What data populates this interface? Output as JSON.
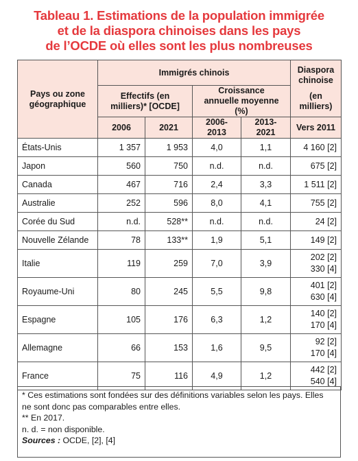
{
  "title": {
    "line1": "Tableau 1. Estimations de la population immigrée",
    "line2": "et de la diaspora chinoises dans les pays",
    "line3": "de l’OCDE où elles sont les plus nombreuses"
  },
  "header": {
    "country_col": "Pays ou zone géographique",
    "immigres_group": "Immigrés chinois",
    "effectifs": "Effectifs (en milliers)* [OCDE]",
    "croissance": "Croissance annuelle moyenne (%)",
    "diaspora_line1": "Diaspora",
    "diaspora_line2": "chinoise",
    "diaspora_unit": "(en milliers)",
    "y2006": "2006",
    "y2021": "2021",
    "p1": "2006-2013",
    "p2": "2013-2021",
    "vers": "Vers 2011"
  },
  "rows": [
    {
      "country": "États-Unis",
      "v2006": "1 357",
      "v2021": "1 953",
      "g1": "4,0",
      "g2": "1,1",
      "d1": "4 160 [2]",
      "d2": ""
    },
    {
      "country": "Japon",
      "v2006": "560",
      "v2021": "750",
      "g1": "n.d.",
      "g2": "n.d.",
      "d1": "675 [2]",
      "d2": ""
    },
    {
      "country": "Canada",
      "v2006": "467",
      "v2021": "716",
      "g1": "2,4",
      "g2": "3,3",
      "d1": "1 511 [2]",
      "d2": ""
    },
    {
      "country": "Australie",
      "v2006": "252",
      "v2021": "596",
      "g1": "8,0",
      "g2": "4,1",
      "d1": "755 [2]",
      "d2": ""
    },
    {
      "country": "Corée du Sud",
      "v2006": "n.d.",
      "v2021": "528**",
      "g1": "n.d.",
      "g2": "n.d.",
      "d1": "24 [2]",
      "d2": ""
    },
    {
      "country": "Nouvelle Zélande",
      "v2006": "78",
      "v2021": "133**",
      "g1": "1,9",
      "g2": "5,1",
      "d1": "149 [2]",
      "d2": ""
    },
    {
      "country": "Italie",
      "v2006": "119",
      "v2021": "259",
      "g1": "7,0",
      "g2": "3,9",
      "d1": "202 [2]",
      "d2": "330 [4]"
    },
    {
      "country": "Royaume-Uni",
      "v2006": "80",
      "v2021": "245",
      "g1": "5,5",
      "g2": "9,8",
      "d1": "401 [2]",
      "d2": "630 [4]"
    },
    {
      "country": "Espagne",
      "v2006": "105",
      "v2021": "176",
      "g1": "6,3",
      "g2": "1,2",
      "d1": "140 [2]",
      "d2": "170 [4]"
    },
    {
      "country": "Allemagne",
      "v2006": "66",
      "v2021": "153",
      "g1": "1,6",
      "g2": "9,5",
      "d1": "92 [2]",
      "d2": "170 [4]"
    },
    {
      "country": "France",
      "v2006": "75",
      "v2021": "116",
      "g1": "4,9",
      "g2": "1,2",
      "d1": "442 [2]",
      "d2": "540 [4]"
    }
  ],
  "footnote": {
    "line1": "* Ces estimations sont fondées sur des définitions variables selon les pays. Elles",
    "line2": "ne sont donc pas comparables entre elles.",
    "line3": "** En 2017.",
    "line4": "n. d. = non disponible.",
    "sources_label": "Sources :",
    "sources_text": " OCDE, [2], [4]"
  },
  "colors": {
    "title": "#e5393d",
    "header_bg": "#fbe3dc",
    "border": "#555555"
  }
}
